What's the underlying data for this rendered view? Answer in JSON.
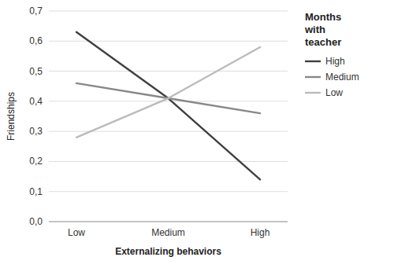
{
  "chart_data": {
    "type": "line",
    "xlabel": "Externalizing behaviors",
    "ylabel": "Friendships",
    "legend_title": "Months\nwith\nteacher",
    "categories": [
      "Low",
      "Medium",
      "High"
    ],
    "series": [
      {
        "name": "High",
        "color": "#404040",
        "values": [
          0.63,
          0.41,
          0.14
        ]
      },
      {
        "name": "Medium",
        "color": "#888888",
        "values": [
          0.46,
          0.41,
          0.36
        ]
      },
      {
        "name": "Low",
        "color": "#bbbbbb",
        "values": [
          0.28,
          0.41,
          0.58
        ]
      }
    ],
    "ylim": [
      0.0,
      0.7
    ],
    "yticks": [
      {
        "value": 0.0,
        "label": "0,0"
      },
      {
        "value": 0.1,
        "label": "0,1"
      },
      {
        "value": 0.2,
        "label": "0,2"
      },
      {
        "value": 0.3,
        "label": "0,3"
      },
      {
        "value": 0.4,
        "label": "0,4"
      },
      {
        "value": 0.5,
        "label": "0,5"
      },
      {
        "value": 0.6,
        "label": "0,6"
      },
      {
        "value": 0.7,
        "label": "0,7"
      }
    ],
    "grid": true,
    "legend": "right"
  }
}
